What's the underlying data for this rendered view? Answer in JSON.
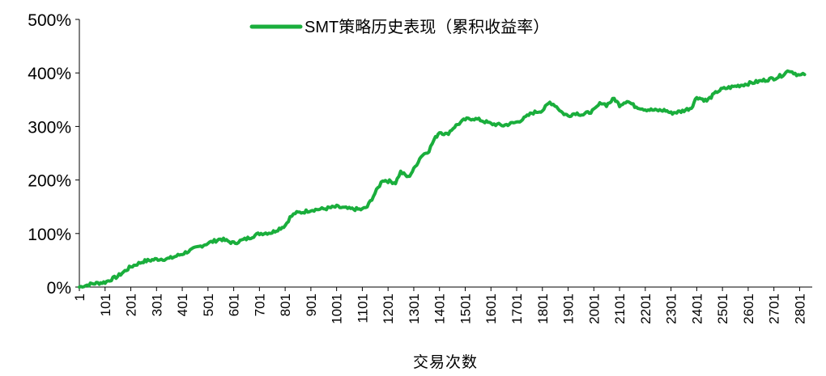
{
  "chart_data": {
    "type": "line",
    "title": "",
    "xlabel": "交易次数",
    "ylabel": "",
    "ylim": [
      0,
      500
    ],
    "yticks": [
      "0%",
      "100%",
      "200%",
      "300%",
      "400%",
      "500%"
    ],
    "xticks": [
      "1",
      "101",
      "201",
      "301",
      "401",
      "501",
      "601",
      "701",
      "801",
      "901",
      "1001",
      "1101",
      "1201",
      "1301",
      "1401",
      "1501",
      "1601",
      "1701",
      "1801",
      "1901",
      "2001",
      "2101",
      "2201",
      "2301",
      "2401",
      "2501",
      "2601",
      "2701",
      "2801"
    ],
    "grid": false,
    "legend_position": "top-center",
    "series": [
      {
        "name": "SMT策略历史表现（累积收益率）",
        "color": "#1aae3c",
        "x": [
          1,
          50,
          101,
          150,
          201,
          250,
          301,
          350,
          401,
          450,
          501,
          550,
          601,
          650,
          701,
          750,
          801,
          820,
          840,
          870,
          901,
          950,
          1001,
          1050,
          1101,
          1120,
          1150,
          1180,
          1201,
          1230,
          1250,
          1280,
          1301,
          1330,
          1360,
          1380,
          1401,
          1430,
          1460,
          1501,
          1530,
          1560,
          1601,
          1650,
          1701,
          1730,
          1760,
          1801,
          1830,
          1850,
          1880,
          1901,
          1930,
          1960,
          2001,
          2030,
          2050,
          2080,
          2101,
          2130,
          2160,
          2201,
          2240,
          2280,
          2301,
          2340,
          2380,
          2401,
          2440,
          2480,
          2501,
          2550,
          2601,
          2650,
          2701,
          2730,
          2760,
          2801,
          2820
        ],
        "y": [
          0,
          6,
          9,
          20,
          38,
          48,
          52,
          53,
          62,
          72,
          82,
          90,
          82,
          90,
          100,
          102,
          115,
          130,
          138,
          140,
          144,
          146,
          150,
          146,
          145,
          150,
          175,
          200,
          198,
          195,
          215,
          205,
          220,
          245,
          255,
          275,
          290,
          285,
          300,
          313,
          315,
          312,
          305,
          302,
          308,
          315,
          325,
          330,
          345,
          340,
          325,
          320,
          325,
          322,
          330,
          345,
          340,
          352,
          340,
          348,
          338,
          332,
          330,
          330,
          325,
          328,
          335,
          355,
          348,
          365,
          370,
          375,
          380,
          385,
          390,
          395,
          405,
          395,
          397
        ]
      }
    ]
  }
}
